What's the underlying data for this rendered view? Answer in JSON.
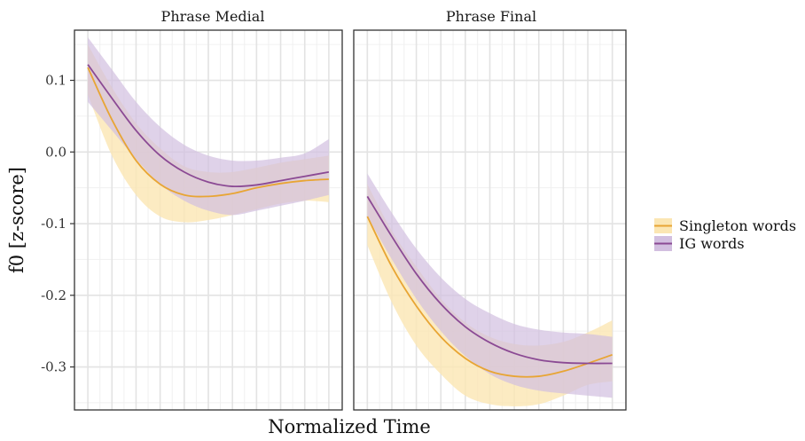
{
  "chart_data": {
    "type": "line",
    "ylabel": "f0 [z-score]",
    "xlabel": "Normalized Time",
    "ylim": [
      -0.36,
      0.17
    ],
    "yticks": [
      0.1,
      0.0,
      -0.1,
      -0.2,
      -0.3
    ],
    "ytick_labels": [
      "0.1",
      "0.0",
      "-0.1",
      "-0.2",
      "-0.3"
    ],
    "xlim": [
      0,
      1
    ],
    "grid": true,
    "legend_position": "right",
    "colors": {
      "singleton": "#e8a534",
      "singleton_band": "#fbe6b3",
      "ig": "#8b4a94",
      "ig_band": "#d2bfe0"
    },
    "facets": [
      {
        "title": "Phrase Medial",
        "x": [
          0,
          0.1,
          0.2,
          0.3,
          0.4,
          0.5,
          0.6,
          0.7,
          0.8,
          0.9,
          1.0
        ],
        "series": [
          {
            "name": "Singleton words",
            "key": "singleton",
            "y": [
              0.118,
              0.045,
              -0.012,
              -0.045,
              -0.06,
              -0.062,
              -0.058,
              -0.05,
              -0.044,
              -0.04,
              -0.038
            ],
            "lower": [
              0.08,
              -0.005,
              -0.06,
              -0.09,
              -0.098,
              -0.095,
              -0.088,
              -0.08,
              -0.072,
              -0.068,
              -0.07
            ],
            "upper": [
              0.15,
              0.09,
              0.04,
              0.005,
              -0.02,
              -0.028,
              -0.028,
              -0.022,
              -0.015,
              -0.01,
              -0.005
            ]
          },
          {
            "name": "IG words",
            "key": "ig",
            "y": [
              0.122,
              0.075,
              0.03,
              -0.005,
              -0.028,
              -0.042,
              -0.048,
              -0.046,
              -0.04,
              -0.034,
              -0.028
            ],
            "lower": [
              0.07,
              0.03,
              -0.01,
              -0.045,
              -0.068,
              -0.082,
              -0.088,
              -0.082,
              -0.075,
              -0.068,
              -0.06
            ],
            "upper": [
              0.16,
              0.115,
              0.07,
              0.035,
              0.01,
              -0.005,
              -0.012,
              -0.012,
              -0.008,
              -0.002,
              0.018
            ]
          }
        ]
      },
      {
        "title": "Phrase Final",
        "x": [
          0,
          0.1,
          0.2,
          0.3,
          0.4,
          0.5,
          0.6,
          0.7,
          0.8,
          0.9,
          1.0
        ],
        "series": [
          {
            "name": "Singleton words",
            "key": "singleton",
            "y": [
              -0.09,
              -0.16,
              -0.215,
              -0.258,
              -0.288,
              -0.306,
              -0.313,
              -0.313,
              -0.306,
              -0.295,
              -0.283
            ],
            "lower": [
              -0.13,
              -0.21,
              -0.27,
              -0.31,
              -0.34,
              -0.352,
              -0.355,
              -0.352,
              -0.34,
              -0.325,
              -0.32
            ],
            "upper": [
              -0.045,
              -0.11,
              -0.16,
              -0.205,
              -0.238,
              -0.258,
              -0.268,
              -0.27,
              -0.265,
              -0.252,
              -0.235
            ]
          },
          {
            "name": "IG words",
            "key": "ig",
            "y": [
              -0.062,
              -0.118,
              -0.17,
              -0.212,
              -0.244,
              -0.266,
              -0.281,
              -0.29,
              -0.294,
              -0.295,
              -0.295
            ],
            "lower": [
              -0.09,
              -0.15,
              -0.205,
              -0.25,
              -0.285,
              -0.31,
              -0.325,
              -0.333,
              -0.337,
              -0.34,
              -0.343
            ],
            "upper": [
              -0.03,
              -0.085,
              -0.135,
              -0.175,
              -0.205,
              -0.225,
              -0.24,
              -0.248,
              -0.252,
              -0.254,
              -0.258
            ]
          }
        ]
      }
    ],
    "legend": [
      {
        "label": "Singleton words",
        "key": "singleton"
      },
      {
        "label": "IG words",
        "key": "ig"
      }
    ]
  }
}
